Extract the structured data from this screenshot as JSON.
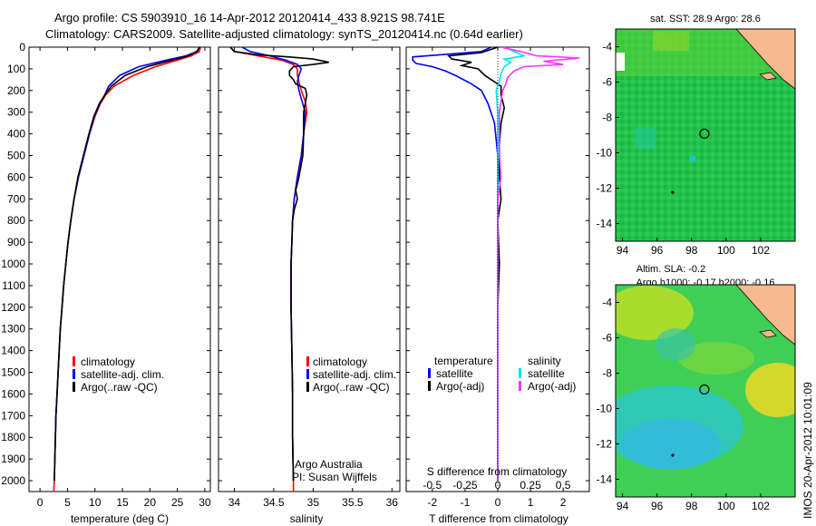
{
  "header": {
    "line1": "Argo profile: CS 5903910_16 14-Apr-2012 20120414_433 8.921S 98.741E",
    "line2": "Climatology: CARS2009. Satellite-adjusted climatology: synTS_20120414.nc (0.64d earlier)"
  },
  "colors": {
    "climatology": "#ff0000",
    "satellite": "#0000ff",
    "argo": "#000000",
    "salinity_satellite": "#00e5ee",
    "salinity_argo": "#ff33ff",
    "land": "#f7b98e"
  },
  "depth_axis": {
    "ylim": [
      0,
      2050
    ],
    "ticks": [
      0,
      100,
      200,
      300,
      400,
      500,
      600,
      700,
      800,
      900,
      1000,
      1100,
      1200,
      1300,
      1400,
      1500,
      1600,
      1700,
      1800,
      1900,
      2000
    ]
  },
  "chart_data": [
    {
      "type": "line",
      "xlabel": "temperature (deg C)",
      "xlim": [
        -2,
        31
      ],
      "ylim": [
        0,
        2050
      ],
      "x_ticks": [
        0,
        5,
        10,
        15,
        20,
        25,
        30
      ],
      "legend": [
        "climatology",
        "satellite-adj. clim.",
        "Argo(..raw -QC)"
      ],
      "series": [
        {
          "name": "climatology",
          "color": "#ff0000",
          "points": [
            [
              29.2,
              0
            ],
            [
              29.0,
              20
            ],
            [
              27.5,
              40
            ],
            [
              25.0,
              60
            ],
            [
              21.0,
              90
            ],
            [
              17.0,
              130
            ],
            [
              13.5,
              180
            ],
            [
              12.0,
              220
            ],
            [
              11.0,
              260
            ],
            [
              10.0,
              320
            ],
            [
              9.0,
              400
            ],
            [
              8.0,
              500
            ],
            [
              7.0,
              600
            ],
            [
              6.2,
              700
            ],
            [
              5.6,
              800
            ],
            [
              5.1,
              900
            ],
            [
              4.7,
              1000
            ],
            [
              4.3,
              1100
            ],
            [
              4.0,
              1200
            ],
            [
              3.7,
              1300
            ],
            [
              3.5,
              1400
            ],
            [
              3.3,
              1500
            ],
            [
              3.1,
              1600
            ],
            [
              2.9,
              1700
            ],
            [
              2.8,
              1800
            ],
            [
              2.7,
              1900
            ],
            [
              2.6,
              2000
            ],
            [
              2.5,
              2050
            ]
          ]
        },
        {
          "name": "satellite-adj. clim.",
          "color": "#0000ff",
          "points": [
            [
              29.0,
              0
            ],
            [
              28.6,
              20
            ],
            [
              26.5,
              40
            ],
            [
              23.0,
              60
            ],
            [
              18.0,
              90
            ],
            [
              14.5,
              130
            ],
            [
              12.5,
              180
            ],
            [
              11.8,
              220
            ],
            [
              10.9,
              260
            ],
            [
              9.9,
              320
            ],
            [
              9.0,
              400
            ],
            [
              8.0,
              500
            ],
            [
              7.0,
              600
            ],
            [
              6.2,
              700
            ],
            [
              5.6,
              800
            ],
            [
              5.1,
              900
            ],
            [
              4.7,
              1000
            ],
            [
              4.3,
              1100
            ],
            [
              4.0,
              1200
            ],
            [
              3.7,
              1300
            ],
            [
              3.5,
              1400
            ],
            [
              3.3,
              1500
            ],
            [
              3.1,
              1600
            ],
            [
              2.9,
              1700
            ],
            [
              2.8,
              1800
            ],
            [
              2.7,
              1900
            ],
            [
              2.6,
              2000
            ]
          ]
        },
        {
          "name": "Argo(..raw -QC)",
          "color": "#000000",
          "points": [
            [
              29.1,
              0
            ],
            [
              28.5,
              20
            ],
            [
              27.0,
              40
            ],
            [
              24.0,
              60
            ],
            [
              19.5,
              90
            ],
            [
              15.5,
              130
            ],
            [
              13.0,
              180
            ],
            [
              11.8,
              220
            ],
            [
              10.8,
              260
            ],
            [
              9.8,
              320
            ],
            [
              8.9,
              400
            ],
            [
              7.9,
              500
            ],
            [
              6.9,
              600
            ],
            [
              6.2,
              700
            ],
            [
              5.6,
              800
            ],
            [
              5.1,
              900
            ],
            [
              4.7,
              1000
            ],
            [
              4.3,
              1100
            ],
            [
              4.0,
              1200
            ],
            [
              3.7,
              1300
            ],
            [
              3.5,
              1400
            ],
            [
              3.3,
              1500
            ],
            [
              3.1,
              1600
            ],
            [
              2.9,
              1700
            ],
            [
              2.8,
              1800
            ],
            [
              2.7,
              1900
            ],
            [
              2.6,
              2000
            ]
          ]
        }
      ]
    },
    {
      "type": "line",
      "xlabel": "salinity",
      "xlim": [
        33.8,
        36.1
      ],
      "ylim": [
        0,
        2050
      ],
      "x_ticks": [
        34,
        34.5,
        35,
        35.5,
        36
      ],
      "legend": [
        "climatology",
        "satellite-adj. clim.",
        "Argo(..raw -QC)"
      ],
      "annotation": [
        "Argo Australia",
        "PI: Susan Wijffels"
      ],
      "series": [
        {
          "name": "climatology",
          "color": "#ff0000",
          "points": [
            [
              33.95,
              0
            ],
            [
              34.0,
              20
            ],
            [
              34.3,
              40
            ],
            [
              34.6,
              60
            ],
            [
              34.75,
              80
            ],
            [
              34.8,
              100
            ],
            [
              34.8,
              130
            ],
            [
              34.82,
              160
            ],
            [
              34.85,
              200
            ],
            [
              34.9,
              250
            ],
            [
              34.92,
              300
            ],
            [
              34.88,
              400
            ],
            [
              34.85,
              500
            ],
            [
              34.8,
              600
            ],
            [
              34.76,
              700
            ],
            [
              34.74,
              800
            ],
            [
              34.73,
              900
            ],
            [
              34.72,
              1000
            ],
            [
              34.72,
              1200
            ],
            [
              34.73,
              1400
            ],
            [
              34.74,
              1600
            ],
            [
              34.74,
              1800
            ],
            [
              34.75,
              2000
            ],
            [
              34.75,
              2050
            ]
          ]
        },
        {
          "name": "satellite-adj. clim.",
          "color": "#0000ff",
          "points": [
            [
              34.1,
              0
            ],
            [
              34.2,
              20
            ],
            [
              34.45,
              40
            ],
            [
              34.65,
              60
            ],
            [
              34.8,
              80
            ],
            [
              34.85,
              100
            ],
            [
              34.82,
              130
            ],
            [
              34.8,
              160
            ],
            [
              34.82,
              200
            ],
            [
              34.86,
              250
            ],
            [
              34.9,
              300
            ],
            [
              34.88,
              400
            ],
            [
              34.85,
              500
            ],
            [
              34.8,
              600
            ],
            [
              34.76,
              700
            ],
            [
              34.74,
              800
            ],
            [
              34.73,
              900
            ],
            [
              34.72,
              1000
            ],
            [
              34.72,
              1200
            ],
            [
              34.73,
              1400
            ],
            [
              34.74,
              1600
            ],
            [
              34.74,
              1800
            ],
            [
              34.75,
              2000
            ]
          ]
        },
        {
          "name": "Argo(..raw -QC)",
          "color": "#000000",
          "points": [
            [
              33.95,
              0
            ],
            [
              34.0,
              20
            ],
            [
              34.3,
              35
            ],
            [
              34.7,
              45
            ],
            [
              35.0,
              55
            ],
            [
              35.2,
              70
            ],
            [
              35.0,
              80
            ],
            [
              34.75,
              90
            ],
            [
              34.7,
              110
            ],
            [
              34.7,
              130
            ],
            [
              34.75,
              150
            ],
            [
              34.78,
              170
            ],
            [
              34.9,
              190
            ],
            [
              34.92,
              220
            ],
            [
              34.9,
              260
            ],
            [
              34.88,
              300
            ],
            [
              34.88,
              400
            ],
            [
              34.87,
              500
            ],
            [
              34.82,
              600
            ],
            [
              34.78,
              660
            ],
            [
              34.8,
              700
            ],
            [
              34.76,
              750
            ],
            [
              34.74,
              800
            ],
            [
              34.73,
              900
            ],
            [
              34.72,
              1000
            ],
            [
              34.72,
              1200
            ],
            [
              34.73,
              1400
            ],
            [
              34.74,
              1600
            ],
            [
              34.74,
              1800
            ],
            [
              34.75,
              2000
            ]
          ]
        }
      ]
    },
    {
      "type": "line",
      "xlabel": "T difference from climatology",
      "top_label": "S difference from climatology",
      "xlim": [
        -2.8,
        2.8
      ],
      "ylim": [
        0,
        2050
      ],
      "x_ticks": [
        -2,
        -1,
        0,
        1,
        2
      ],
      "s_ticks": [
        -0.5,
        -0.25,
        0,
        0.25,
        0.5
      ],
      "legend_temperature_title": "temperature",
      "legend_salinity_title": "salinity",
      "legend": [
        "satellite",
        "Argo(-adj)",
        "satellite",
        "Argo(-adj)"
      ],
      "series": [
        {
          "name": "satellite",
          "group": "temperature",
          "color": "#0000ff",
          "points": [
            [
              -0.2,
              0
            ],
            [
              -0.5,
              20
            ],
            [
              -2.6,
              45
            ],
            [
              -2.6,
              60
            ],
            [
              -2.5,
              75
            ],
            [
              -2.0,
              90
            ],
            [
              -1.6,
              110
            ],
            [
              -1.3,
              130
            ],
            [
              -0.8,
              170
            ],
            [
              -0.5,
              200
            ],
            [
              -0.3,
              260
            ],
            [
              -0.1,
              350
            ],
            [
              0,
              500
            ],
            [
              0,
              2000
            ]
          ]
        },
        {
          "name": "Argo(-adj)",
          "group": "temperature",
          "color": "#000000",
          "points": [
            [
              0,
              0
            ],
            [
              -0.5,
              25
            ],
            [
              -1.5,
              40
            ],
            [
              -1.4,
              55
            ],
            [
              -0.8,
              70
            ],
            [
              -1.1,
              85
            ],
            [
              -0.6,
              100
            ],
            [
              -0.4,
              130
            ],
            [
              0.1,
              180
            ],
            [
              0.1,
              220
            ],
            [
              0.2,
              280
            ],
            [
              0.1,
              350
            ],
            [
              0.05,
              450
            ],
            [
              0.05,
              600
            ],
            [
              0.1,
              700
            ],
            [
              0,
              800
            ],
            [
              0.05,
              1000
            ],
            [
              0,
              1200
            ],
            [
              0,
              2000
            ]
          ]
        },
        {
          "name": "satellite",
          "group": "salinity",
          "color": "#00e5ee",
          "points": [
            [
              0.2,
              0
            ],
            [
              0.35,
              10
            ],
            [
              0.8,
              40
            ],
            [
              0.2,
              55
            ],
            [
              0.4,
              70
            ],
            [
              0.2,
              90
            ],
            [
              0.1,
              120
            ],
            [
              0.05,
              160
            ],
            [
              -0.05,
              200
            ],
            [
              0,
              300
            ],
            [
              0,
              2000
            ]
          ]
        },
        {
          "name": "Argo(-adj)",
          "group": "salinity",
          "color": "#ff33ff",
          "points": [
            [
              0.1,
              0
            ],
            [
              0.7,
              20
            ],
            [
              1.2,
              40
            ],
            [
              2.5,
              50
            ],
            [
              1.4,
              65
            ],
            [
              2.0,
              80
            ],
            [
              0.8,
              90
            ],
            [
              0.5,
              110
            ],
            [
              0.3,
              140
            ],
            [
              0.25,
              170
            ],
            [
              0.15,
              200
            ],
            [
              0.1,
              250
            ],
            [
              0.05,
              300
            ],
            [
              0.05,
              500
            ],
            [
              0.1,
              600
            ],
            [
              0,
              700
            ],
            [
              0,
              2000
            ]
          ]
        }
      ]
    },
    {
      "type": "heatmap",
      "title": "sat. SST: 28.9 Argo: 28.6",
      "xlim": [
        93.6,
        104
      ],
      "ylim": [
        -15,
        -3
      ],
      "x_ticks": [
        94,
        96,
        98,
        100,
        102
      ],
      "y_ticks": [
        -4,
        -6,
        -8,
        -10,
        -12,
        -14
      ],
      "profile_position": [
        98.741,
        -8.921
      ]
    },
    {
      "type": "heatmap",
      "title": "Altim. SLA: -0.2",
      "subtitle": "Argo h1000: -0.17 h2000: -0.16",
      "xlim": [
        93.6,
        104
      ],
      "ylim": [
        -15,
        -3
      ],
      "x_ticks": [
        94,
        96,
        98,
        100,
        102
      ],
      "y_ticks": [
        -4,
        -6,
        -8,
        -10,
        -12,
        -14
      ],
      "profile_position": [
        98.741,
        -8.921
      ]
    }
  ],
  "footer": {
    "stamp": "IMOS 20-Apr-2012 10:01:09"
  }
}
